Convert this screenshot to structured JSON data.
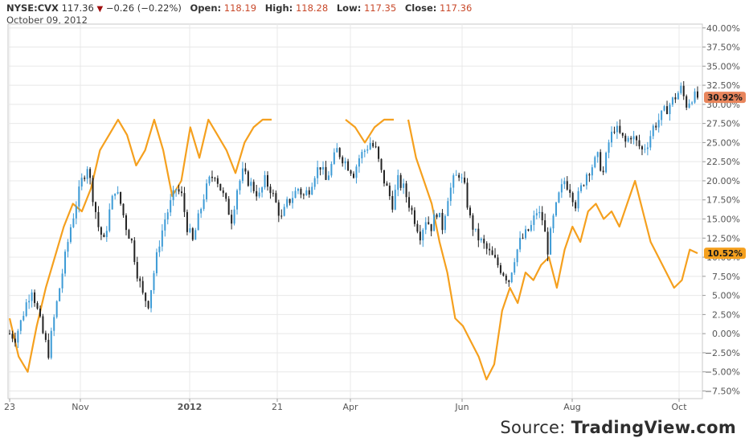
{
  "header": {
    "symbol": "NYSE:CVX",
    "last": "117.36",
    "change": "−0.26 (−0.22%)",
    "open_label": "Open:",
    "open": "118.19",
    "high_label": "High:",
    "high": "118.28",
    "low_label": "Low:",
    "low": "117.35",
    "close_label": "Close:",
    "close": "117.36",
    "date": "October 09, 2012"
  },
  "source": {
    "prefix": "Source:",
    "brand": "TradingView.com"
  },
  "colors": {
    "grid": "#e8e8e8",
    "axis_text": "#555555",
    "orange_series": "#f5a01e",
    "candle_up": "#3d9bd6",
    "candle_down": "#222222",
    "label_cvx_bg": "#e8855c",
    "label_orange_bg": "#f5a01e"
  },
  "chart_data": {
    "type": "line",
    "x_tick_labels": [
      "23",
      "Nov",
      "2012",
      "21",
      "Apr",
      "Jun",
      "Aug",
      "Oct"
    ],
    "y_tick_labels": [
      "40.00%",
      "37.50%",
      "35.00%",
      "32.50%",
      "30.00%",
      "27.50%",
      "25.00%",
      "22.50%",
      "20.00%",
      "17.50%",
      "15.00%",
      "12.50%",
      "10.00%",
      "7.50%",
      "5.00%",
      "2.50%",
      "0.00%",
      "−2.50%",
      "−5.00%",
      "−7.50%"
    ],
    "ylim": [
      -8.5,
      40.5
    ],
    "series": [
      {
        "last_label": "30.92%",
        "style": "candles",
        "values": [
          0,
          -0.5,
          1.5,
          4,
          6,
          3,
          0,
          -2.5,
          2,
          6,
          10,
          14,
          17,
          20,
          22,
          18,
          14,
          12,
          16,
          19,
          17,
          14,
          12,
          8,
          5,
          4,
          8,
          12,
          15,
          17,
          19,
          18,
          14,
          12,
          15,
          18,
          20,
          21,
          19,
          17,
          15,
          19,
          21,
          20,
          19,
          18,
          20,
          19,
          17,
          15,
          17,
          18,
          19,
          18,
          19,
          21,
          22,
          20,
          22,
          24,
          23,
          22,
          21,
          23,
          24,
          25,
          24,
          21,
          19,
          17,
          20,
          19,
          17,
          15,
          13,
          15,
          14,
          16,
          14,
          18,
          20,
          21,
          19,
          15,
          13,
          12,
          11,
          10,
          9,
          8,
          7,
          10,
          12,
          13,
          14,
          16,
          15,
          11,
          15,
          18,
          20,
          19,
          17,
          19,
          21,
          22,
          23,
          21,
          25,
          27,
          26,
          25,
          26,
          25,
          24,
          25,
          27,
          28,
          29,
          30,
          31,
          32,
          30,
          31,
          30.92
        ]
      },
      {
        "last_label": "10.52%",
        "style": "line",
        "segments": [
          [
            2,
            -3,
            -5,
            1,
            6,
            10,
            14,
            17,
            16,
            19,
            24,
            26,
            28,
            26,
            22,
            24,
            28,
            24,
            18,
            20,
            27,
            23,
            28,
            26,
            24,
            21,
            25,
            27,
            28,
            28
          ],
          [
            28,
            27,
            25,
            27,
            28,
            28
          ],
          [
            28,
            23,
            20,
            17,
            12,
            8,
            2,
            1,
            -1,
            -3,
            -6,
            -4,
            3,
            6,
            4,
            8,
            7,
            9,
            10,
            6,
            11,
            14,
            12,
            16,
            17,
            15,
            16,
            14,
            17,
            20,
            16,
            12,
            10,
            8,
            6,
            7,
            11,
            10.52
          ]
        ]
      }
    ]
  }
}
